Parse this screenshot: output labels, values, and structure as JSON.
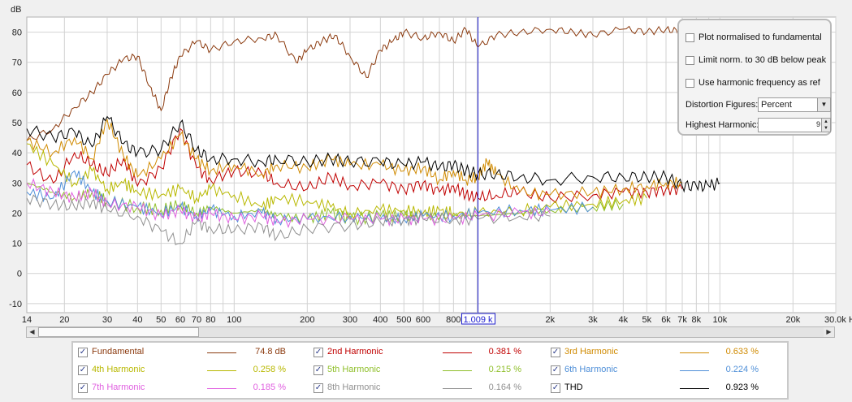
{
  "plot": {
    "y_unit_label": "dB",
    "y_ticks": [
      "80",
      "70",
      "60",
      "50",
      "40",
      "30",
      "20",
      "10",
      "0",
      "-10"
    ],
    "x_tick_labels": [
      {
        "f": 14,
        "t": "14"
      },
      {
        "f": 20,
        "t": "20"
      },
      {
        "f": 30,
        "t": "30"
      },
      {
        "f": 40,
        "t": "40"
      },
      {
        "f": 50,
        "t": "50"
      },
      {
        "f": 60,
        "t": "60"
      },
      {
        "f": 70,
        "t": "70"
      },
      {
        "f": 80,
        "t": "80"
      },
      {
        "f": 100,
        "t": "100"
      },
      {
        "f": 200,
        "t": "200"
      },
      {
        "f": 300,
        "t": "300"
      },
      {
        "f": 400,
        "t": "400"
      },
      {
        "f": 500,
        "t": "500"
      },
      {
        "f": 600,
        "t": "600"
      },
      {
        "f": 800,
        "t": "800"
      },
      {
        "f": 2000,
        "t": "2k"
      },
      {
        "f": 3000,
        "t": "3k"
      },
      {
        "f": 4000,
        "t": "4k"
      },
      {
        "f": 5000,
        "t": "5k"
      },
      {
        "f": 6000,
        "t": "6k"
      },
      {
        "f": 7000,
        "t": "7k"
      },
      {
        "f": 8000,
        "t": "8k"
      },
      {
        "f": 10000,
        "t": "10k"
      },
      {
        "f": 20000,
        "t": "20k"
      },
      {
        "f": 30000,
        "t": "30.0k Hz"
      }
    ],
    "cursor_label": "1.009 k",
    "cursor_freq": 1009
  },
  "chart_data": {
    "type": "line",
    "x_scale": "log",
    "xlim": [
      14,
      30000
    ],
    "ylim": [
      -13,
      85
    ],
    "xlabel": "Hz",
    "ylabel": "dB",
    "grid": true,
    "series": [
      {
        "name": "Fundamental",
        "color": "#8b3a0e",
        "points": [
          [
            14,
            44
          ],
          [
            18,
            48
          ],
          [
            22,
            55
          ],
          [
            26,
            60
          ],
          [
            30,
            66
          ],
          [
            35,
            71
          ],
          [
            40,
            72
          ],
          [
            45,
            62
          ],
          [
            50,
            54
          ],
          [
            55,
            65
          ],
          [
            60,
            72
          ],
          [
            70,
            77
          ],
          [
            80,
            74
          ],
          [
            100,
            77
          ],
          [
            130,
            78
          ],
          [
            150,
            79
          ],
          [
            180,
            70
          ],
          [
            200,
            74
          ],
          [
            230,
            77
          ],
          [
            260,
            79
          ],
          [
            300,
            72
          ],
          [
            350,
            65
          ],
          [
            400,
            74
          ],
          [
            450,
            77
          ],
          [
            500,
            80
          ],
          [
            600,
            78
          ],
          [
            700,
            80
          ],
          [
            800,
            77
          ],
          [
            900,
            81
          ],
          [
            1009,
            75
          ],
          [
            1200,
            79
          ],
          [
            1500,
            80
          ],
          [
            2000,
            81
          ],
          [
            2500,
            80
          ],
          [
            3000,
            79
          ],
          [
            4000,
            81
          ],
          [
            5000,
            80
          ],
          [
            6000,
            81
          ],
          [
            7000,
            80
          ],
          [
            8000,
            82
          ],
          [
            9000,
            81
          ]
        ]
      },
      {
        "name": "2nd Harmonic",
        "color": "#c00000",
        "points": [
          [
            14,
            36
          ],
          [
            18,
            30
          ],
          [
            22,
            40
          ],
          [
            26,
            36
          ],
          [
            30,
            33
          ],
          [
            35,
            38
          ],
          [
            40,
            29
          ],
          [
            50,
            35
          ],
          [
            60,
            48
          ],
          [
            70,
            35
          ],
          [
            80,
            31
          ],
          [
            100,
            34
          ],
          [
            130,
            33
          ],
          [
            150,
            30
          ],
          [
            200,
            28
          ],
          [
            250,
            32
          ],
          [
            300,
            29
          ],
          [
            400,
            30
          ],
          [
            500,
            28
          ],
          [
            600,
            30
          ],
          [
            700,
            27
          ],
          [
            800,
            29
          ],
          [
            900,
            26
          ],
          [
            1009,
            25
          ],
          [
            1200,
            26
          ],
          [
            1500,
            27
          ],
          [
            2000,
            25
          ],
          [
            3000,
            26
          ],
          [
            4000,
            27
          ],
          [
            5000,
            27
          ],
          [
            6000,
            28
          ],
          [
            7000,
            28
          ]
        ]
      },
      {
        "name": "3rd Harmonic",
        "color": "#d08a00",
        "points": [
          [
            14,
            44
          ],
          [
            18,
            40
          ],
          [
            22,
            45
          ],
          [
            26,
            38
          ],
          [
            30,
            51
          ],
          [
            35,
            39
          ],
          [
            40,
            32
          ],
          [
            50,
            38
          ],
          [
            60,
            46
          ],
          [
            70,
            38
          ],
          [
            80,
            34
          ],
          [
            100,
            36
          ],
          [
            130,
            33
          ],
          [
            150,
            36
          ],
          [
            200,
            35
          ],
          [
            250,
            38
          ],
          [
            300,
            36
          ],
          [
            400,
            36
          ],
          [
            500,
            34
          ],
          [
            600,
            35
          ],
          [
            700,
            31
          ],
          [
            800,
            34
          ],
          [
            900,
            31
          ],
          [
            1009,
            32
          ],
          [
            1100,
            37
          ],
          [
            1200,
            33
          ],
          [
            1500,
            27
          ],
          [
            2000,
            26
          ],
          [
            3000,
            27
          ],
          [
            4000,
            28
          ],
          [
            5000,
            29
          ],
          [
            6000,
            30
          ],
          [
            7000,
            30
          ]
        ]
      },
      {
        "name": "4th Harmonic",
        "color": "#b8b800",
        "points": [
          [
            14,
            43
          ],
          [
            18,
            36
          ],
          [
            22,
            30
          ],
          [
            26,
            34
          ],
          [
            30,
            28
          ],
          [
            35,
            30
          ],
          [
            40,
            27
          ],
          [
            50,
            26
          ],
          [
            60,
            28
          ],
          [
            70,
            25
          ],
          [
            80,
            28
          ],
          [
            100,
            26
          ],
          [
            130,
            22
          ],
          [
            150,
            25
          ],
          [
            200,
            24
          ],
          [
            250,
            22
          ],
          [
            300,
            20
          ],
          [
            400,
            21
          ],
          [
            500,
            21
          ],
          [
            600,
            20
          ],
          [
            700,
            21
          ],
          [
            800,
            20
          ],
          [
            1009,
            20
          ],
          [
            1500,
            21
          ],
          [
            2000,
            22
          ],
          [
            3000,
            23
          ],
          [
            4000,
            24
          ],
          [
            5000,
            25
          ]
        ]
      },
      {
        "name": "5th Harmonic",
        "color": "#8fbf2a",
        "points": [
          [
            14,
            30
          ],
          [
            18,
            27
          ],
          [
            22,
            25
          ],
          [
            26,
            27
          ],
          [
            30,
            24
          ],
          [
            40,
            22
          ],
          [
            50,
            21
          ],
          [
            60,
            23
          ],
          [
            70,
            20
          ],
          [
            80,
            22
          ],
          [
            100,
            20
          ],
          [
            130,
            21
          ],
          [
            150,
            19
          ],
          [
            200,
            18
          ],
          [
            250,
            20
          ],
          [
            300,
            18
          ],
          [
            400,
            19
          ],
          [
            500,
            19
          ],
          [
            600,
            19
          ],
          [
            800,
            19
          ],
          [
            1009,
            19
          ],
          [
            1500,
            20
          ],
          [
            2000,
            21
          ],
          [
            3000,
            22
          ],
          [
            4000,
            23
          ]
        ]
      },
      {
        "name": "6th Harmonic",
        "color": "#4f8fd8",
        "points": [
          [
            14,
            27
          ],
          [
            18,
            25
          ],
          [
            22,
            34
          ],
          [
            26,
            27
          ],
          [
            30,
            24
          ],
          [
            40,
            22
          ],
          [
            50,
            20
          ],
          [
            60,
            22
          ],
          [
            70,
            19
          ],
          [
            80,
            21
          ],
          [
            100,
            19
          ],
          [
            130,
            20
          ],
          [
            150,
            18
          ],
          [
            200,
            18
          ],
          [
            300,
            19
          ],
          [
            400,
            18
          ],
          [
            500,
            18
          ],
          [
            600,
            19
          ],
          [
            800,
            19
          ],
          [
            1009,
            20
          ],
          [
            1500,
            21
          ],
          [
            2000,
            21
          ],
          [
            3000,
            22
          ]
        ]
      },
      {
        "name": "7th Harmonic",
        "color": "#e060e0",
        "points": [
          [
            14,
            30
          ],
          [
            18,
            27
          ],
          [
            22,
            25
          ],
          [
            26,
            27
          ],
          [
            30,
            23
          ],
          [
            40,
            22
          ],
          [
            50,
            19
          ],
          [
            60,
            21
          ],
          [
            70,
            18
          ],
          [
            80,
            20
          ],
          [
            100,
            18
          ],
          [
            130,
            19
          ],
          [
            150,
            17
          ],
          [
            200,
            18
          ],
          [
            300,
            18
          ],
          [
            400,
            18
          ],
          [
            500,
            18
          ],
          [
            600,
            18
          ],
          [
            800,
            18
          ],
          [
            1009,
            19
          ],
          [
            1500,
            20
          ],
          [
            2000,
            20
          ]
        ]
      },
      {
        "name": "8th Harmonic",
        "color": "#909090",
        "points": [
          [
            14,
            25
          ],
          [
            18,
            23
          ],
          [
            22,
            22
          ],
          [
            26,
            24
          ],
          [
            30,
            21
          ],
          [
            40,
            19
          ],
          [
            50,
            14
          ],
          [
            60,
            10
          ],
          [
            70,
            17
          ],
          [
            80,
            15
          ],
          [
            100,
            14
          ],
          [
            130,
            16
          ],
          [
            150,
            12
          ],
          [
            200,
            15
          ],
          [
            300,
            16
          ],
          [
            400,
            17
          ],
          [
            500,
            18
          ],
          [
            600,
            18
          ],
          [
            800,
            18
          ],
          [
            1009,
            18
          ],
          [
            1500,
            19
          ],
          [
            2000,
            19
          ]
        ]
      },
      {
        "name": "THD",
        "color": "#000000",
        "points": [
          [
            14,
            48
          ],
          [
            18,
            45
          ],
          [
            22,
            47
          ],
          [
            26,
            42
          ],
          [
            30,
            52
          ],
          [
            35,
            43
          ],
          [
            40,
            40
          ],
          [
            50,
            41
          ],
          [
            60,
            50
          ],
          [
            70,
            41
          ],
          [
            80,
            38
          ],
          [
            100,
            38
          ],
          [
            130,
            37
          ],
          [
            150,
            38
          ],
          [
            200,
            37
          ],
          [
            250,
            38
          ],
          [
            300,
            37
          ],
          [
            400,
            37
          ],
          [
            500,
            36
          ],
          [
            600,
            37
          ],
          [
            700,
            35
          ],
          [
            800,
            36
          ],
          [
            900,
            34
          ],
          [
            1009,
            33
          ],
          [
            1200,
            33
          ],
          [
            1500,
            32
          ],
          [
            2000,
            31
          ],
          [
            3000,
            32
          ],
          [
            4000,
            32
          ],
          [
            5000,
            32
          ],
          [
            6000,
            32
          ],
          [
            7000,
            29
          ],
          [
            8000,
            29
          ],
          [
            9000,
            29
          ],
          [
            10000,
            30
          ]
        ]
      }
    ]
  },
  "options": {
    "normalised_label": "Plot normalised to fundamental",
    "limit_label": "Limit norm. to 30 dB below peak",
    "harmonic_freq_label": "Use harmonic frequency as ref",
    "figures_label": "Distortion Figures:",
    "figures_value": "Percent",
    "highest_label": "Highest Harmonic:",
    "highest_value": "9"
  },
  "legend": [
    {
      "name": "Fundamental",
      "value": "74.8 dB",
      "color": "#8b3a0e",
      "text_color": "#8b3a0e"
    },
    {
      "name": "2nd Harmonic",
      "value": "0.381 %",
      "color": "#c00000",
      "text_color": "#c00000"
    },
    {
      "name": "3rd Harmonic",
      "value": "0.633 %",
      "color": "#d08a00",
      "text_color": "#d08a00"
    },
    {
      "name": "4th Harmonic",
      "value": "0.258 %",
      "color": "#b8b800",
      "text_color": "#b8b800"
    },
    {
      "name": "5th Harmonic",
      "value": "0.215 %",
      "color": "#8fbf2a",
      "text_color": "#8fbf2a"
    },
    {
      "name": "6th Harmonic",
      "value": "0.224 %",
      "color": "#4f8fd8",
      "text_color": "#4f8fd8"
    },
    {
      "name": "7th Harmonic",
      "value": "0.185 %",
      "color": "#e060e0",
      "text_color": "#e060e0"
    },
    {
      "name": "8th Harmonic",
      "value": "0.164 %",
      "color": "#909090",
      "text_color": "#909090"
    },
    {
      "name": "THD",
      "value": "0.923 %",
      "color": "#000000",
      "text_color": "#000000"
    }
  ]
}
